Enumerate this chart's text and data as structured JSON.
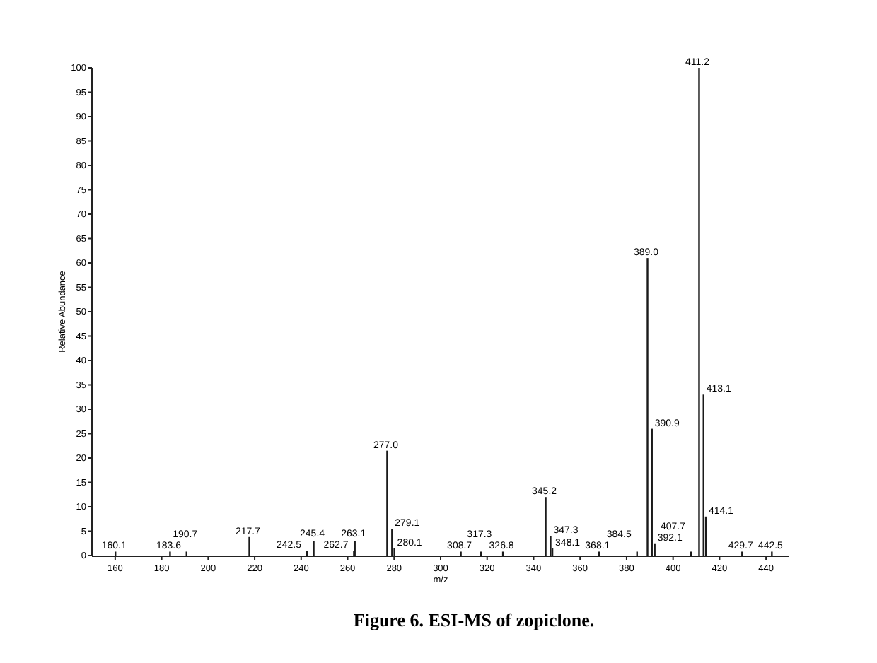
{
  "chart_data": {
    "type": "bar",
    "xlabel": "m/z",
    "ylabel": "Relative Abundance",
    "x": [
      160.1,
      183.6,
      190.7,
      217.7,
      242.5,
      245.4,
      262.7,
      263.1,
      277.0,
      279.1,
      280.1,
      308.7,
      317.3,
      326.8,
      345.2,
      347.3,
      348.1,
      368.1,
      384.5,
      389.0,
      390.9,
      392.1,
      407.7,
      411.2,
      413.1,
      414.1,
      429.7,
      442.5
    ],
    "values": [
      0.8,
      0.8,
      0.8,
      3.8,
      1,
      3,
      1,
      3,
      21.5,
      5.5,
      1.5,
      0.8,
      0.8,
      0.8,
      12,
      4,
      1.5,
      0.8,
      0.8,
      61,
      26,
      2.5,
      0.8,
      100,
      33,
      8,
      0.8,
      0.8
    ],
    "color": "#1a1a1a",
    "xlim": [
      150,
      450
    ],
    "xticks": [
      160,
      180,
      200,
      220,
      240,
      260,
      280,
      300,
      320,
      340,
      360,
      380,
      400,
      420,
      440
    ],
    "ylim": [
      0,
      100
    ],
    "yticks": [
      0,
      5,
      10,
      15,
      20,
      25,
      30,
      35,
      40,
      45,
      50,
      55,
      60,
      65,
      70,
      75,
      80,
      85,
      90,
      95,
      100
    ],
    "grid": false,
    "annotations": [
      {
        "text": "160.1",
        "x": 160.1,
        "y": 0.8
      },
      {
        "text": "183.6",
        "x": 183.6,
        "y": 0.8
      },
      {
        "text": "190.7",
        "x": 190.7,
        "y": 0.8
      },
      {
        "text": "217.7",
        "x": 217.7,
        "y": 3.8
      },
      {
        "text": "242.5",
        "x": 242.5,
        "y": 1
      },
      {
        "text": "245.4",
        "x": 245.4,
        "y": 3
      },
      {
        "text": "262.7",
        "x": 262.7,
        "y": 1
      },
      {
        "text": "263.1",
        "x": 263.1,
        "y": 3
      },
      {
        "text": "277.0",
        "x": 277.0,
        "y": 21.5
      },
      {
        "text": "279.1",
        "x": 279.1,
        "y": 5.5
      },
      {
        "text": "280.1",
        "x": 280.1,
        "y": 1.5
      },
      {
        "text": "308.7",
        "x": 308.7,
        "y": 0.8
      },
      {
        "text": "317.3",
        "x": 317.3,
        "y": 0.8
      },
      {
        "text": "326.8",
        "x": 326.8,
        "y": 0.8
      },
      {
        "text": "345.2",
        "x": 345.2,
        "y": 12
      },
      {
        "text": "347.3",
        "x": 347.3,
        "y": 4
      },
      {
        "text": "348.1",
        "x": 348.1,
        "y": 1.5
      },
      {
        "text": "368.1",
        "x": 368.1,
        "y": 0.8
      },
      {
        "text": "384.5",
        "x": 384.5,
        "y": 0.8
      },
      {
        "text": "389.0",
        "x": 389.0,
        "y": 61
      },
      {
        "text": "390.9",
        "x": 390.9,
        "y": 26
      },
      {
        "text": "392.1",
        "x": 392.1,
        "y": 2.5
      },
      {
        "text": "407.7",
        "x": 407.7,
        "y": 0.8
      },
      {
        "text": "411.2",
        "x": 411.2,
        "y": 100
      },
      {
        "text": "413.1",
        "x": 413.1,
        "y": 33
      },
      {
        "text": "414.1",
        "x": 414.1,
        "y": 8
      },
      {
        "text": "429.7",
        "x": 429.7,
        "y": 0.8
      },
      {
        "text": "442.5",
        "x": 442.5,
        "y": 0.8
      },
      "Figure 6.    ESI-MS of zopiclone."
    ]
  }
}
